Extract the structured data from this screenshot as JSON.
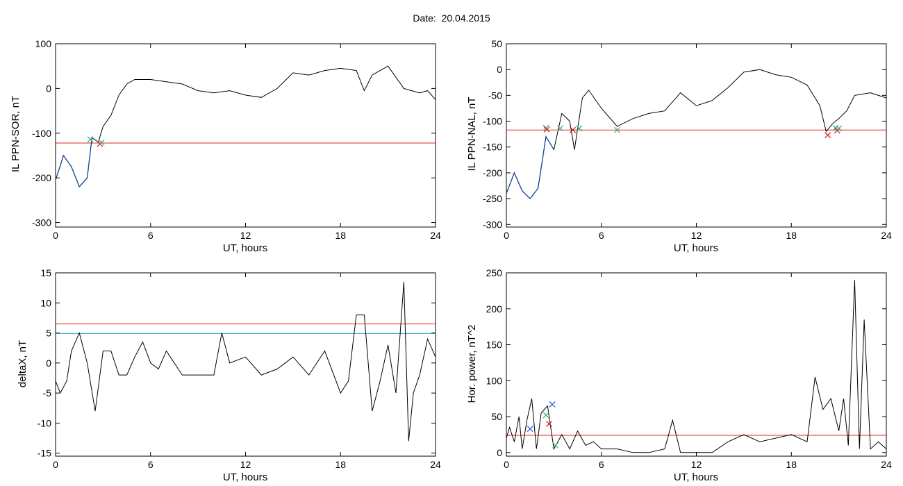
{
  "title": "Date:  20.04.2015",
  "colors": {
    "line": "#000000",
    "threshold": "#e32626",
    "threshold2": "#1aa0c4",
    "highlight": "#1560c0",
    "marker_green": "#3cb371",
    "marker_red": "#d42020",
    "marker_blue": "#2a5fd6"
  },
  "chart_data": [
    {
      "id": "ppn-sor",
      "type": "line",
      "title": "",
      "xlabel": "UT, hours",
      "ylabel": "IL PPN-SOR, nT",
      "xlim": [
        0,
        24
      ],
      "ylim": [
        -310,
        100
      ],
      "xticks": [
        0,
        6,
        12,
        18,
        24
      ],
      "yticks": [
        -300,
        -200,
        -100,
        0,
        100
      ],
      "threshold": -122,
      "x": [
        0,
        0.5,
        1.0,
        1.5,
        2.0,
        2.3,
        2.7,
        3.0,
        3.5,
        4.0,
        4.5,
        5.0,
        6.0,
        7.0,
        8.0,
        9.0,
        10.0,
        11.0,
        12.0,
        13.0,
        14.0,
        15.0,
        16.0,
        17.0,
        18.0,
        19.0,
        19.5,
        20.0,
        20.5,
        21.0,
        21.5,
        22.0,
        22.5,
        23.0,
        23.5,
        24.0
      ],
      "y": [
        -205,
        -150,
        -175,
        -220,
        -200,
        -110,
        -120,
        -85,
        -60,
        -15,
        10,
        20,
        20,
        15,
        10,
        -5,
        -10,
        -5,
        -15,
        -20,
        0,
        35,
        30,
        40,
        45,
        40,
        -5,
        30,
        40,
        50,
        25,
        0,
        -5,
        -10,
        -5,
        -25
      ],
      "highlight_range": [
        0,
        2.8
      ],
      "markers": [
        {
          "x": 2.2,
          "y": -114,
          "symbol": "x",
          "color": "green"
        },
        {
          "x": 2.8,
          "y": -124,
          "symbol": "x",
          "color": "red"
        },
        {
          "x": 2.9,
          "y": -121,
          "symbol": "x",
          "color": "green"
        }
      ]
    },
    {
      "id": "ppn-nal",
      "type": "line",
      "title": "",
      "xlabel": "UT, hours",
      "ylabel": "IL PPN-NAL, nT",
      "xlim": [
        0,
        24
      ],
      "ylim": [
        -305,
        50
      ],
      "xticks": [
        0,
        6,
        12,
        18,
        24
      ],
      "yticks": [
        -300,
        -250,
        -200,
        -150,
        -100,
        -50,
        0,
        50
      ],
      "threshold": -117,
      "x": [
        0,
        0.5,
        1.0,
        1.5,
        2.0,
        2.5,
        3.0,
        3.5,
        4.0,
        4.3,
        4.8,
        5.2,
        6.0,
        7.0,
        8.0,
        9.0,
        10.0,
        11.0,
        12.0,
        13.0,
        14.0,
        15.0,
        16.0,
        17.0,
        18.0,
        19.0,
        19.8,
        20.2,
        20.6,
        21.0,
        21.5,
        22.0,
        23.0,
        24.0
      ],
      "y": [
        -240,
        -200,
        -235,
        -250,
        -230,
        -130,
        -155,
        -85,
        -100,
        -155,
        -55,
        -40,
        -75,
        -110,
        -95,
        -85,
        -80,
        -45,
        -70,
        -60,
        -35,
        -5,
        0,
        -10,
        -15,
        -30,
        -70,
        -120,
        -105,
        -95,
        -80,
        -50,
        -45,
        -55
      ],
      "highlight_range": [
        0,
        3.2
      ],
      "markers": [
        {
          "x": 2.5,
          "y": -113,
          "symbol": "x",
          "color": "green"
        },
        {
          "x": 2.55,
          "y": -116,
          "symbol": "x",
          "color": "red"
        },
        {
          "x": 3.4,
          "y": -114,
          "symbol": "x",
          "color": "green"
        },
        {
          "x": 4.2,
          "y": -117,
          "symbol": "x",
          "color": "red"
        },
        {
          "x": 4.6,
          "y": -114,
          "symbol": "x",
          "color": "green"
        },
        {
          "x": 7.0,
          "y": -117,
          "symbol": "x",
          "color": "green"
        },
        {
          "x": 20.3,
          "y": -127,
          "symbol": "x",
          "color": "red"
        },
        {
          "x": 20.8,
          "y": -113,
          "symbol": "x",
          "color": "green"
        },
        {
          "x": 20.9,
          "y": -118,
          "symbol": "x",
          "color": "red"
        },
        {
          "x": 21.0,
          "y": -114,
          "symbol": "x",
          "color": "green"
        }
      ]
    },
    {
      "id": "deltax",
      "type": "line",
      "title": "",
      "xlabel": "UT, hours",
      "ylabel": "deltaX, nT",
      "xlim": [
        0,
        24
      ],
      "ylim": [
        -15.5,
        15
      ],
      "xticks": [
        0,
        6,
        12,
        18,
        24
      ],
      "yticks": [
        -15,
        -10,
        -5,
        0,
        5,
        10,
        15
      ],
      "threshold": 6.5,
      "threshold2": 4.9,
      "x": [
        0,
        0.3,
        0.7,
        1.0,
        1.5,
        2.0,
        2.5,
        3.0,
        3.5,
        4.0,
        4.5,
        5.0,
        5.5,
        6.0,
        6.5,
        7.0,
        7.5,
        8.0,
        9.0,
        10.0,
        10.5,
        11.0,
        12.0,
        13.0,
        14.0,
        15.0,
        16.0,
        17.0,
        18.0,
        18.5,
        19.0,
        19.5,
        20.0,
        20.5,
        21.0,
        21.5,
        22.0,
        22.3,
        22.6,
        23.0,
        23.5,
        24.0
      ],
      "y": [
        -3,
        -5,
        -3,
        2,
        5,
        0,
        -8,
        2,
        2,
        -2,
        -2,
        1,
        3.5,
        0,
        -1,
        2,
        0,
        -2,
        -2,
        -2,
        5,
        0,
        1,
        -2,
        -1,
        1,
        -2,
        2,
        -5,
        -3,
        8,
        8,
        -8,
        -3,
        3,
        -5,
        13.5,
        -13,
        -5,
        -2,
        4,
        1
      ]
    },
    {
      "id": "hor-power",
      "type": "line",
      "title": "",
      "xlabel": "UT, hours",
      "ylabel": "Hor. power, nT^2",
      "xlim": [
        0,
        24
      ],
      "ylim": [
        -5,
        250
      ],
      "xticks": [
        0,
        6,
        12,
        18,
        24
      ],
      "yticks": [
        0,
        50,
        100,
        150,
        200,
        250
      ],
      "threshold": 24,
      "x": [
        0,
        0.2,
        0.5,
        0.8,
        1.0,
        1.3,
        1.6,
        1.9,
        2.2,
        2.6,
        3.0,
        3.5,
        4.0,
        4.5,
        5.0,
        5.5,
        6.0,
        7.0,
        8.0,
        9.0,
        10.0,
        10.5,
        11.0,
        12.0,
        13.0,
        14.0,
        15.0,
        16.0,
        17.0,
        18.0,
        19.0,
        19.5,
        20.0,
        20.5,
        21.0,
        21.3,
        21.6,
        22.0,
        22.3,
        22.6,
        23.0,
        23.5,
        24.0
      ],
      "y": [
        20,
        35,
        15,
        50,
        5,
        45,
        75,
        5,
        55,
        65,
        5,
        25,
        5,
        30,
        10,
        15,
        5,
        5,
        0,
        0,
        5,
        45,
        0,
        0,
        0,
        15,
        25,
        15,
        20,
        25,
        15,
        105,
        60,
        75,
        30,
        75,
        10,
        240,
        5,
        185,
        5,
        15,
        5
      ],
      "markers": [
        {
          "x": 1.5,
          "y": 33,
          "symbol": "x",
          "color": "blue"
        },
        {
          "x": 2.5,
          "y": 52,
          "symbol": "x",
          "color": "green"
        },
        {
          "x": 2.7,
          "y": 40,
          "symbol": "x",
          "color": "red"
        },
        {
          "x": 2.9,
          "y": 67,
          "symbol": "x",
          "color": "blue"
        },
        {
          "x": 3.1,
          "y": 10,
          "symbol": "x",
          "color": "green"
        }
      ]
    }
  ]
}
